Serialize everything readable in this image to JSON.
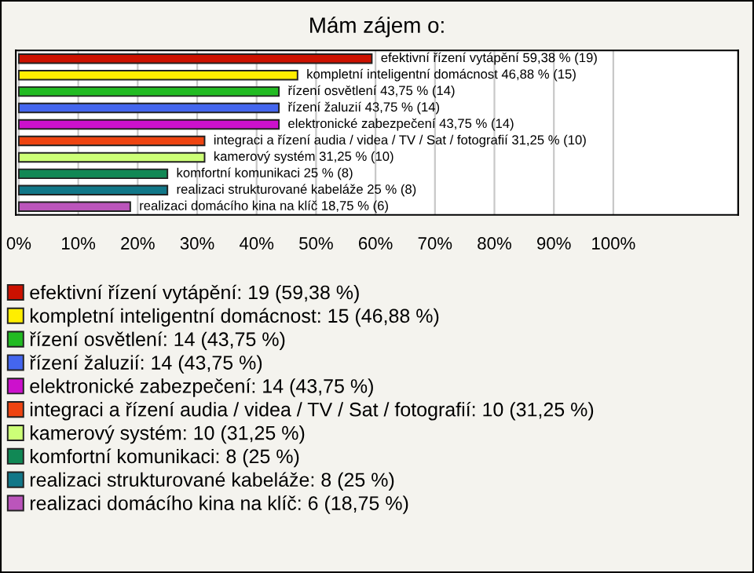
{
  "chart_data": {
    "type": "bar",
    "orientation": "horizontal",
    "title": "Mám zájem o:",
    "categories": [
      null,
      null,
      null,
      null,
      null,
      null,
      null,
      null,
      null,
      null
    ],
    "series": [
      {
        "name": "efektivní řízení vytápění: 19 (59,38 %)",
        "color": "#cc1100",
        "values": [
          59.38,
          null,
          null,
          null,
          null,
          null,
          null,
          null,
          null,
          null
        ],
        "value_labels": [
          "efektivní řízení vytápění 59,38 % (19)",
          null,
          null,
          null,
          null,
          null,
          null,
          null,
          null,
          null
        ]
      },
      {
        "name": "kompletní inteligentní domácnost: 15 (46,88 %)",
        "color": "#ffee00",
        "values": [
          null,
          46.88,
          null,
          null,
          null,
          null,
          null,
          null,
          null,
          null
        ],
        "value_labels": [
          null,
          "kompletní inteligentní domácnost 46,88 % (15)",
          null,
          null,
          null,
          null,
          null,
          null,
          null,
          null
        ]
      },
      {
        "name": "řízení osvětlení: 14 (43,75 %)",
        "color": "#22bb22",
        "values": [
          null,
          null,
          43.75,
          null,
          null,
          null,
          null,
          null,
          null,
          null
        ],
        "value_labels": [
          null,
          null,
          "řízení osvětlení 43,75 % (14)",
          null,
          null,
          null,
          null,
          null,
          null,
          null
        ]
      },
      {
        "name": "řízení žaluzií: 14 (43,75 %)",
        "color": "#4466ee",
        "values": [
          null,
          null,
          null,
          43.75,
          null,
          null,
          null,
          null,
          null,
          null
        ],
        "value_labels": [
          null,
          null,
          null,
          "řízení žaluzií 43,75 % (14)",
          null,
          null,
          null,
          null,
          null,
          null
        ]
      },
      {
        "name": "elektronické zabezpečení: 14 (43,75 %)",
        "color": "#cc11cc",
        "values": [
          null,
          null,
          null,
          null,
          43.75,
          null,
          null,
          null,
          null,
          null
        ],
        "value_labels": [
          null,
          null,
          null,
          null,
          "elektronické zabezpečení 43,75 % (14)",
          null,
          null,
          null,
          null,
          null
        ]
      },
      {
        "name": "integraci a řízení audia / videa / TV / Sat / fotografií: 10 (31,25 %)",
        "color": "#ee4411",
        "values": [
          null,
          null,
          null,
          null,
          null,
          31.25,
          null,
          null,
          null,
          null
        ],
        "value_labels": [
          null,
          null,
          null,
          null,
          null,
          "integraci a řízení audia / videa / TV / Sat / fotografií 31,25 % (10)",
          null,
          null,
          null,
          null
        ]
      },
      {
        "name": "kamerový systém: 10 (31,25 %)",
        "color": "#ccff77",
        "values": [
          null,
          null,
          null,
          null,
          null,
          null,
          31.25,
          null,
          null,
          null
        ],
        "value_labels": [
          null,
          null,
          null,
          null,
          null,
          null,
          "kamerový systém 31,25 % (10)",
          null,
          null,
          null
        ]
      },
      {
        "name": "komfortní komunikaci: 8 (25 %)",
        "color": "#118855",
        "values": [
          null,
          null,
          null,
          null,
          null,
          null,
          null,
          25,
          null,
          null
        ],
        "value_labels": [
          null,
          null,
          null,
          null,
          null,
          null,
          null,
          "komfortní komunikaci 25 % (8)",
          null,
          null
        ]
      },
      {
        "name": "realizaci strukturované kabeláže: 8 (25 %)",
        "color": "#117788",
        "values": [
          null,
          null,
          null,
          null,
          null,
          null,
          null,
          null,
          25,
          null
        ],
        "value_labels": [
          null,
          null,
          null,
          null,
          null,
          null,
          null,
          null,
          "realizaci strukturované kabeláže 25 % (8)",
          null
        ]
      },
      {
        "name": "realizaci domácího kina na klíč: 6 (18,75 %)",
        "color": "#bb55bb",
        "values": [
          null,
          null,
          null,
          null,
          null,
          null,
          null,
          null,
          null,
          18.75
        ],
        "value_labels": [
          null,
          null,
          null,
          null,
          null,
          null,
          null,
          null,
          null,
          "realizaci domácího kina na klíč 18,75 % (6)"
        ]
      }
    ],
    "xlim": [
      -0.5,
      121
    ],
    "xticks": [
      {
        "value": 0,
        "label": "0%"
      },
      {
        "value": 10,
        "label": "10%"
      },
      {
        "value": 20,
        "label": "20%"
      },
      {
        "value": 30,
        "label": "30%"
      },
      {
        "value": 40,
        "label": "40%"
      },
      {
        "value": 50,
        "label": "50%"
      },
      {
        "value": 60,
        "label": "60%"
      },
      {
        "value": 70,
        "label": "70%"
      },
      {
        "value": 80,
        "label": "80%"
      },
      {
        "value": 90,
        "label": "90%"
      },
      {
        "value": 100,
        "label": "100%"
      }
    ],
    "grid": "x",
    "legend": "bottom"
  }
}
